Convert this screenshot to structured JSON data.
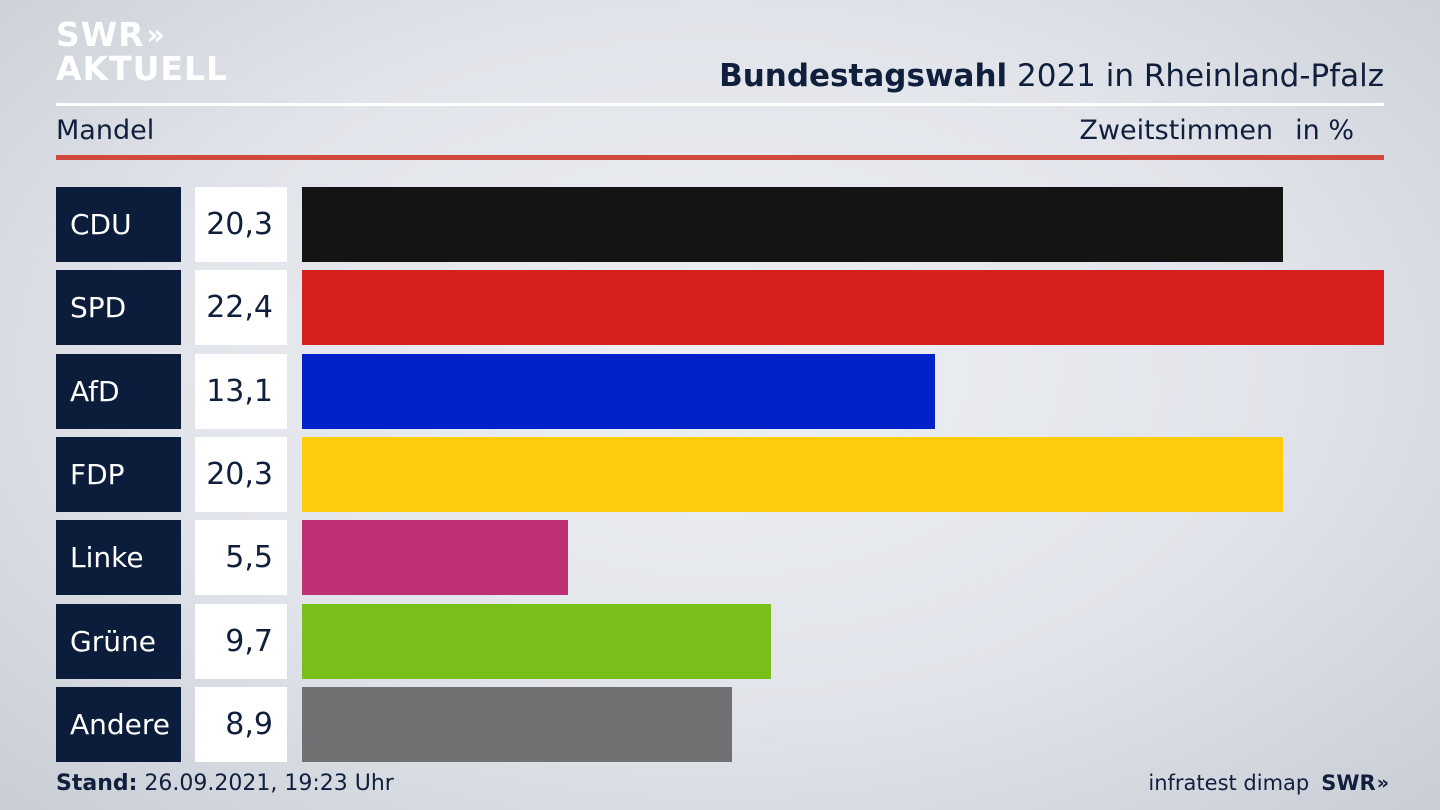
{
  "logo": {
    "line1": "SWR",
    "line1_arrows": "»",
    "line2": "AKTUELL"
  },
  "header": {
    "title_bold": "Bundestagswahl",
    "title_rest": " 2021 in Rheinland-Pfalz",
    "subtitle": "Mandel",
    "metric": "Zweitstimmen",
    "unit": "in %"
  },
  "chart_data": {
    "type": "bar",
    "title": "Bundestagswahl 2021 in Rheinland-Pfalz",
    "subtitle": "Mandel",
    "xlabel": "",
    "ylabel": "Zweitstimmen in %",
    "categories": [
      "CDU",
      "SPD",
      "AfD",
      "FDP",
      "Linke",
      "Grüne",
      "Andere"
    ],
    "values": [
      20.3,
      22.4,
      13.1,
      20.3,
      5.5,
      9.7,
      8.9
    ],
    "value_labels": [
      "20,3",
      "22,4",
      "13,1",
      "20,3",
      "5,5",
      "9,7",
      "8,9"
    ],
    "colors": [
      "#141414",
      "#d7201f",
      "#0221c8",
      "#fdcc0a",
      "#bd3074",
      "#78bf1c",
      "#717173"
    ],
    "ylim": [
      0,
      22.4
    ],
    "grid": false
  },
  "footer": {
    "stand_label": "Stand:",
    "stand_value": " 26.09.2021, 19:23 Uhr",
    "source": "infratest dimap",
    "logo_text": "SWR",
    "logo_arrows": "»"
  }
}
